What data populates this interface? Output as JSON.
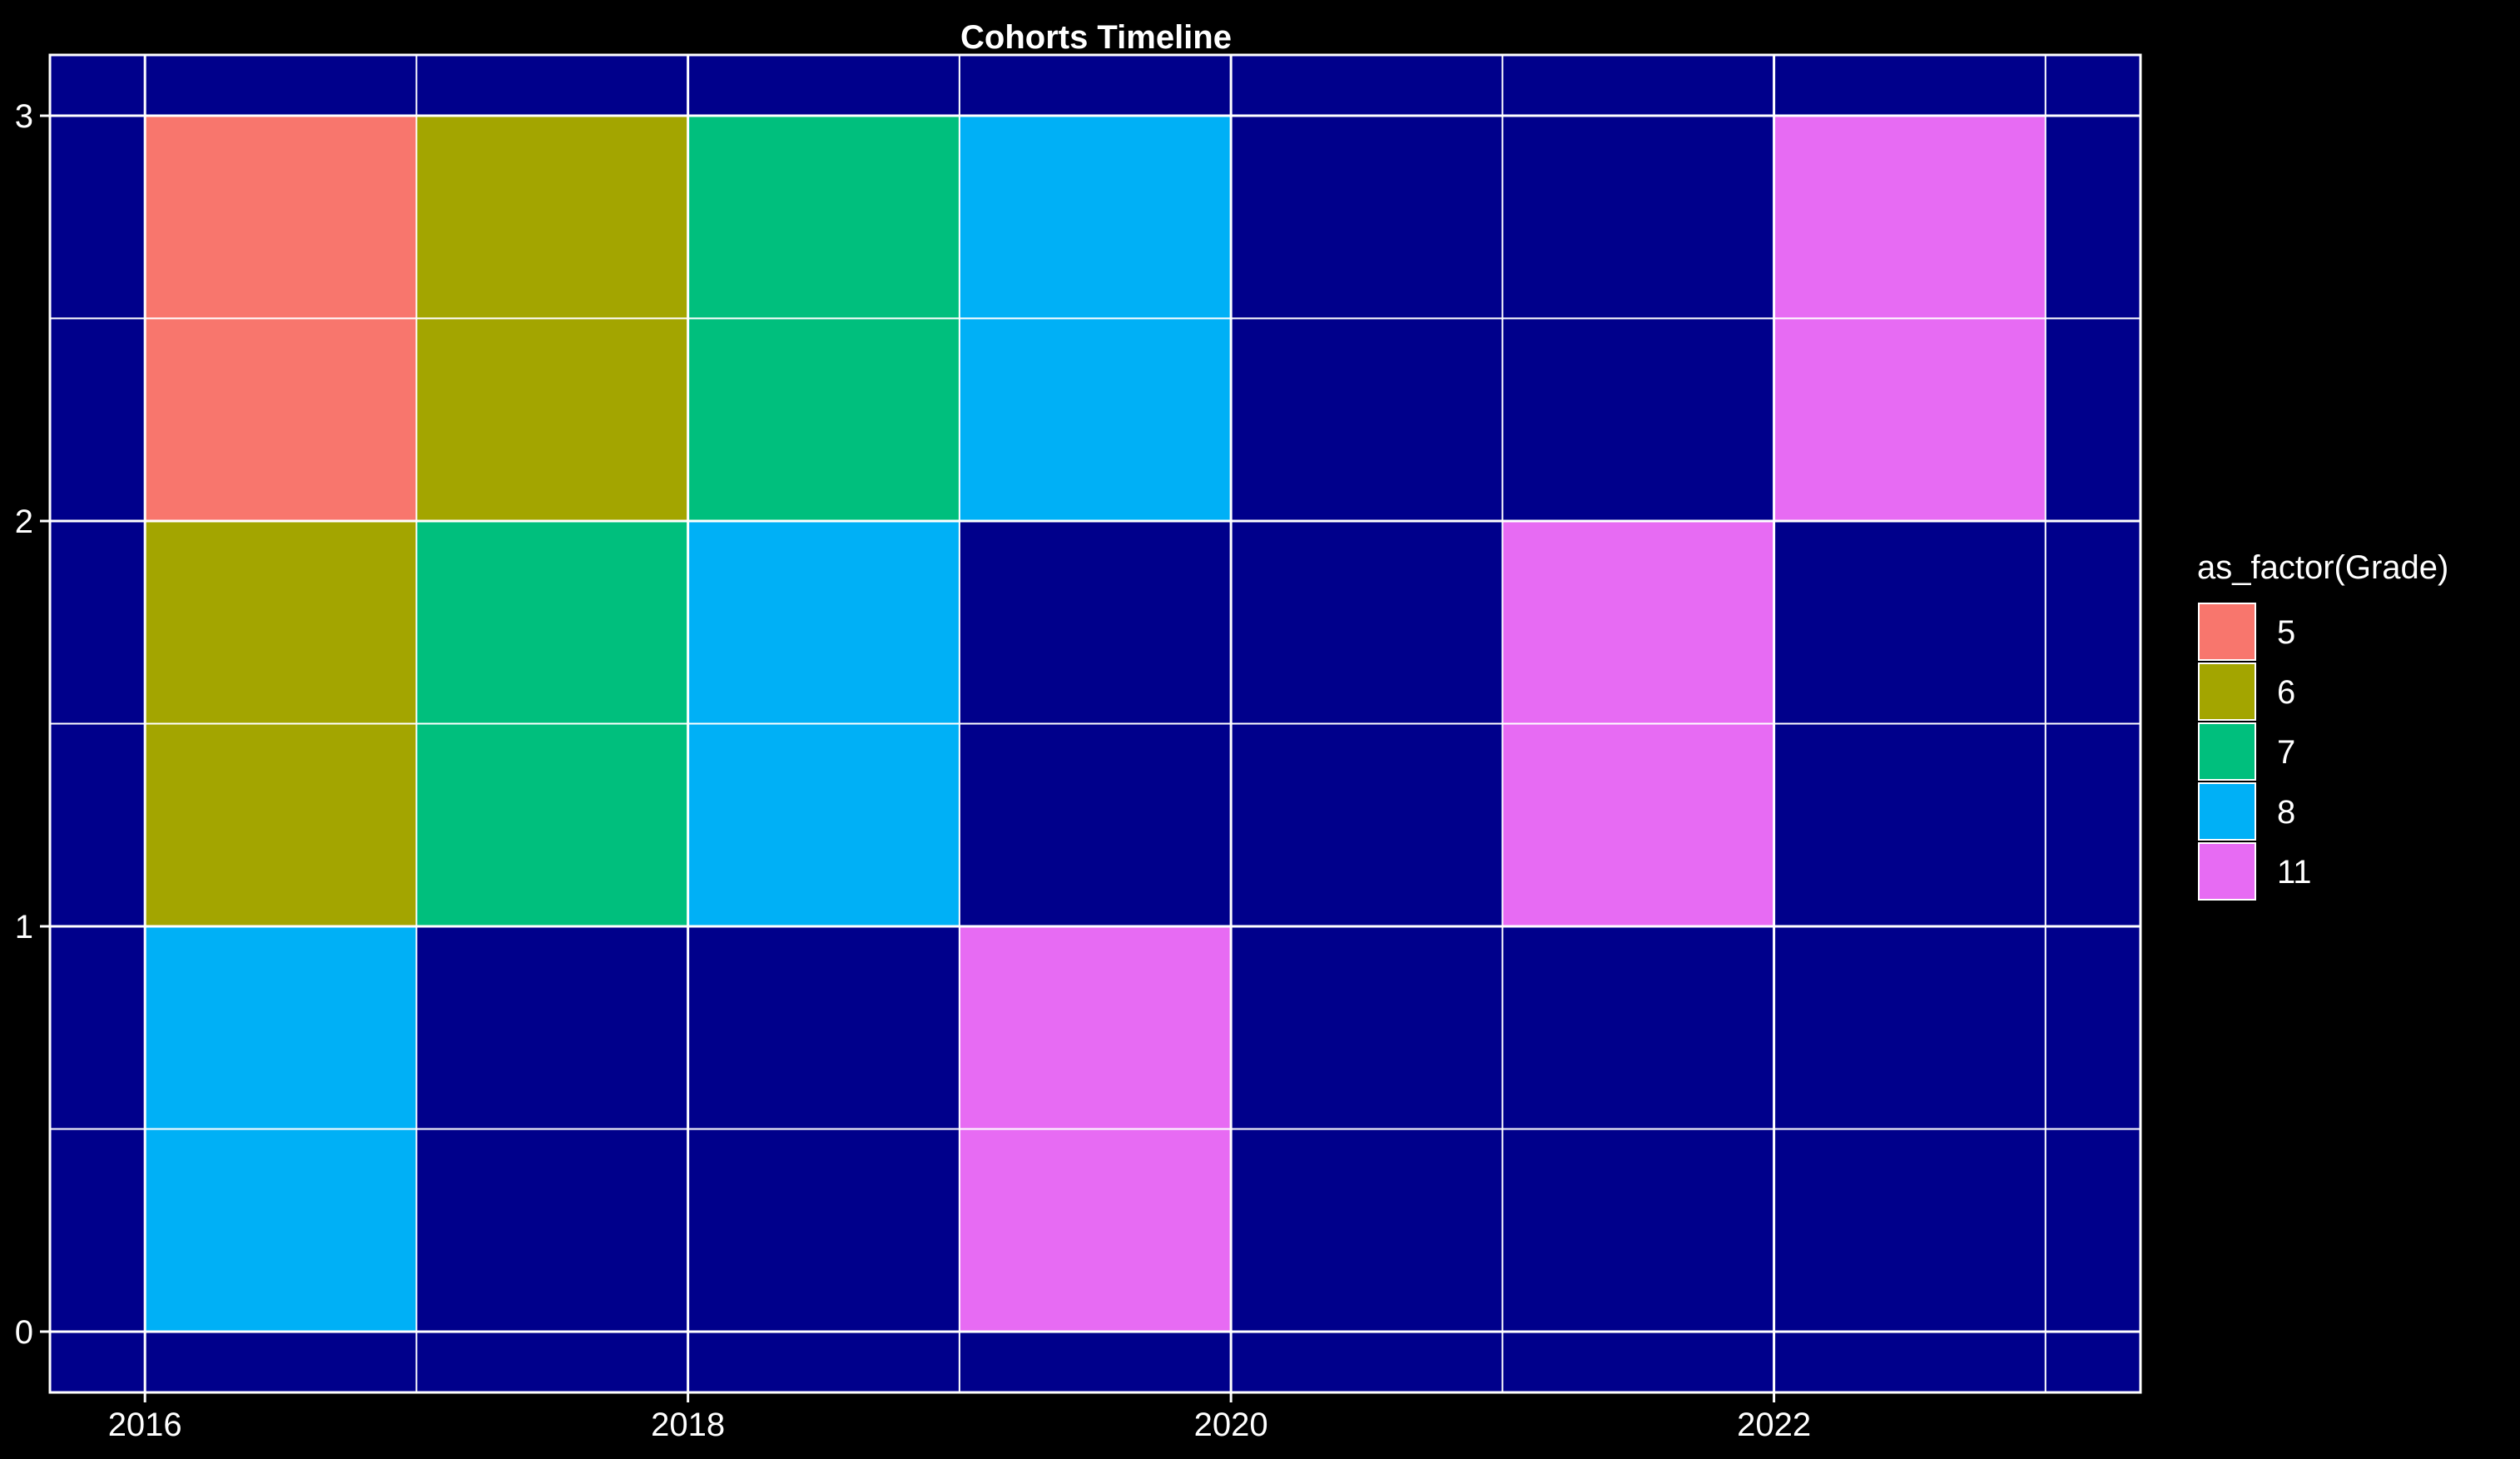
{
  "chart_data": {
    "type": "heatmap",
    "title": "Cohorts Timeline",
    "xlabel": "",
    "ylabel": "",
    "xlim": [
      2015.65,
      2023.35
    ],
    "ylim": [
      -0.15,
      3.15
    ],
    "x_ticks": [
      2016,
      2018,
      2020,
      2022
    ],
    "y_ticks": [
      0,
      1,
      2,
      3
    ],
    "x_minor": [
      2017,
      2019,
      2021,
      2023
    ],
    "y_minor": [
      0.5,
      1.5,
      2.5
    ],
    "grid": true,
    "legend": {
      "title": "as_factor(Grade)",
      "position": "right",
      "entries": [
        {
          "label": "5",
          "color": "#F8766D"
        },
        {
          "label": "6",
          "color": "#A3A500"
        },
        {
          "label": "7",
          "color": "#00BF7D"
        },
        {
          "label": "8",
          "color": "#00B0F6"
        },
        {
          "label": "11",
          "color": "#E76BF3"
        }
      ]
    },
    "tiles": [
      {
        "x0": 2016,
        "x1": 2017,
        "y0": 2,
        "y1": 3,
        "grade": "5"
      },
      {
        "x0": 2016,
        "x1": 2017,
        "y0": 1,
        "y1": 2,
        "grade": "6"
      },
      {
        "x0": 2016,
        "x1": 2017,
        "y0": 0,
        "y1": 1,
        "grade": "8"
      },
      {
        "x0": 2017,
        "x1": 2018,
        "y0": 2,
        "y1": 3,
        "grade": "6"
      },
      {
        "x0": 2017,
        "x1": 2018,
        "y0": 1,
        "y1": 2,
        "grade": "7"
      },
      {
        "x0": 2018,
        "x1": 2019,
        "y0": 2,
        "y1": 3,
        "grade": "7"
      },
      {
        "x0": 2018,
        "x1": 2019,
        "y0": 1,
        "y1": 2,
        "grade": "8"
      },
      {
        "x0": 2019,
        "x1": 2020,
        "y0": 2,
        "y1": 3,
        "grade": "8"
      },
      {
        "x0": 2019,
        "x1": 2020,
        "y0": 0,
        "y1": 1,
        "grade": "11"
      },
      {
        "x0": 2021,
        "x1": 2022,
        "y0": 1,
        "y1": 2,
        "grade": "11"
      },
      {
        "x0": 2022,
        "x1": 2023,
        "y0": 2,
        "y1": 3,
        "grade": "11"
      }
    ],
    "colors": {
      "background": "#000000",
      "panel": "#00008B",
      "grid": "#FFFFFF",
      "text": "#FFFFFF"
    }
  }
}
